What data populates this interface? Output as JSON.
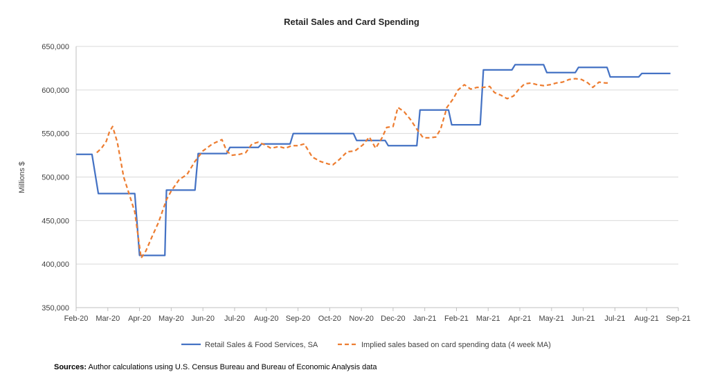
{
  "colors": {
    "retail": "#4472C4",
    "implied": "#ED7D31",
    "grid": "#D9D9D9"
  },
  "source": {
    "label": "Sources:",
    "text": "Author calculations using U.S. Census Bureau and Bureau of Economic Analysis data"
  },
  "chart_data": {
    "type": "line",
    "title": "Retail Sales and Card Spending",
    "ylabel": "Millions $",
    "xlabel": "",
    "ylim": [
      350000,
      650000
    ],
    "ytick_values": [
      350000,
      400000,
      450000,
      500000,
      550000,
      600000,
      650000
    ],
    "ytick_labels": [
      "350,000",
      "400,000",
      "450,000",
      "500,000",
      "550,000",
      "600,000",
      "650,000"
    ],
    "xtick_labels": [
      "Feb-20",
      "Mar-20",
      "Apr-20",
      "May-20",
      "Jun-20",
      "Jul-20",
      "Aug-20",
      "Sep-20",
      "Oct-20",
      "Nov-20",
      "Dec-20",
      "Jan-21",
      "Feb-21",
      "Mar-21",
      "Apr-21",
      "May-21",
      "Jun-21",
      "Jul-21",
      "Aug-21",
      "Sep-21"
    ],
    "xlim": [
      0,
      19
    ],
    "grid": "horizontal",
    "legend": "bottom",
    "series": [
      {
        "name": "Retail Sales & Food Services, SA",
        "style": "solid",
        "points": [
          [
            0,
            526000
          ],
          [
            0.5,
            526000
          ],
          [
            0.7,
            481000
          ],
          [
            1.6,
            481000
          ],
          [
            1.85,
            481000
          ],
          [
            2.0,
            410000
          ],
          [
            2.6,
            410000
          ],
          [
            2.8,
            410000
          ],
          [
            2.85,
            485000
          ],
          [
            3.6,
            485000
          ],
          [
            3.75,
            485000
          ],
          [
            3.85,
            527000
          ],
          [
            4.6,
            527000
          ],
          [
            4.75,
            527000
          ],
          [
            4.85,
            534000
          ],
          [
            5.6,
            534000
          ],
          [
            5.75,
            534000
          ],
          [
            5.85,
            538000
          ],
          [
            6.6,
            538000
          ],
          [
            6.75,
            538000
          ],
          [
            6.85,
            550000
          ],
          [
            7.6,
            550000
          ],
          [
            8.6,
            550000
          ],
          [
            8.75,
            550000
          ],
          [
            8.85,
            542000
          ],
          [
            9.6,
            542000
          ],
          [
            9.75,
            542000
          ],
          [
            9.85,
            536000
          ],
          [
            10.6,
            536000
          ],
          [
            10.75,
            536000
          ],
          [
            10.85,
            577000
          ],
          [
            11.6,
            577000
          ],
          [
            11.75,
            577000
          ],
          [
            11.85,
            560000
          ],
          [
            12.6,
            560000
          ],
          [
            12.75,
            560000
          ],
          [
            12.85,
            623000
          ],
          [
            13.6,
            623000
          ],
          [
            13.75,
            623000
          ],
          [
            13.85,
            629000
          ],
          [
            14.6,
            629000
          ],
          [
            14.75,
            629000
          ],
          [
            14.85,
            620000
          ],
          [
            15.6,
            620000
          ],
          [
            15.75,
            620000
          ],
          [
            15.85,
            626000
          ],
          [
            16.6,
            626000
          ],
          [
            16.75,
            626000
          ],
          [
            16.85,
            615000
          ],
          [
            17.6,
            615000
          ],
          [
            17.75,
            615000
          ],
          [
            17.85,
            619000
          ],
          [
            18.6,
            619000
          ],
          [
            18.75,
            619000
          ]
        ]
      },
      {
        "name": "Implied sales based on card spending data (4 week MA)",
        "style": "dashed",
        "points": [
          [
            0.65,
            528000
          ],
          [
            0.8,
            533000
          ],
          [
            0.95,
            541000
          ],
          [
            1.05,
            552000
          ],
          [
            1.15,
            558000
          ],
          [
            1.3,
            540000
          ],
          [
            1.5,
            500000
          ],
          [
            1.65,
            483000
          ],
          [
            1.85,
            460000
          ],
          [
            2.05,
            407000
          ],
          [
            2.2,
            415000
          ],
          [
            2.4,
            432000
          ],
          [
            2.6,
            448000
          ],
          [
            2.85,
            474000
          ],
          [
            3.0,
            484000
          ],
          [
            3.25,
            497000
          ],
          [
            3.5,
            503000
          ],
          [
            3.75,
            518000
          ],
          [
            4.0,
            530000
          ],
          [
            4.3,
            538000
          ],
          [
            4.6,
            543000
          ],
          [
            4.75,
            530000
          ],
          [
            4.9,
            525000
          ],
          [
            5.15,
            526000
          ],
          [
            5.35,
            528000
          ],
          [
            5.55,
            538000
          ],
          [
            5.75,
            540000
          ],
          [
            5.95,
            537000
          ],
          [
            6.15,
            533000
          ],
          [
            6.4,
            535000
          ],
          [
            6.6,
            533000
          ],
          [
            6.8,
            536000
          ],
          [
            7.0,
            536000
          ],
          [
            7.2,
            538000
          ],
          [
            7.45,
            523000
          ],
          [
            7.7,
            518000
          ],
          [
            7.95,
            515000
          ],
          [
            8.1,
            514000
          ],
          [
            8.3,
            520000
          ],
          [
            8.55,
            529000
          ],
          [
            8.8,
            530000
          ],
          [
            9.05,
            537000
          ],
          [
            9.25,
            546000
          ],
          [
            9.45,
            533000
          ],
          [
            9.65,
            545000
          ],
          [
            9.8,
            557000
          ],
          [
            10.0,
            558000
          ],
          [
            10.15,
            580000
          ],
          [
            10.35,
            575000
          ],
          [
            10.55,
            566000
          ],
          [
            10.75,
            555000
          ],
          [
            10.95,
            545000
          ],
          [
            11.15,
            545000
          ],
          [
            11.35,
            546000
          ],
          [
            11.5,
            555000
          ],
          [
            11.7,
            580000
          ],
          [
            11.9,
            590000
          ],
          [
            12.05,
            600000
          ],
          [
            12.25,
            606000
          ],
          [
            12.45,
            601000
          ],
          [
            12.65,
            603000
          ],
          [
            12.85,
            603000
          ],
          [
            13.05,
            604000
          ],
          [
            13.2,
            597000
          ],
          [
            13.4,
            594000
          ],
          [
            13.6,
            590000
          ],
          [
            13.8,
            593000
          ],
          [
            13.95,
            600000
          ],
          [
            14.15,
            607000
          ],
          [
            14.35,
            608000
          ],
          [
            14.55,
            606000
          ],
          [
            14.75,
            605000
          ],
          [
            14.95,
            606000
          ],
          [
            15.15,
            608000
          ],
          [
            15.35,
            609000
          ],
          [
            15.55,
            612000
          ],
          [
            15.75,
            613000
          ],
          [
            15.95,
            612000
          ],
          [
            16.15,
            608000
          ],
          [
            16.3,
            603000
          ],
          [
            16.5,
            609000
          ],
          [
            16.7,
            608000
          ],
          [
            16.85,
            608000
          ]
        ]
      }
    ]
  }
}
